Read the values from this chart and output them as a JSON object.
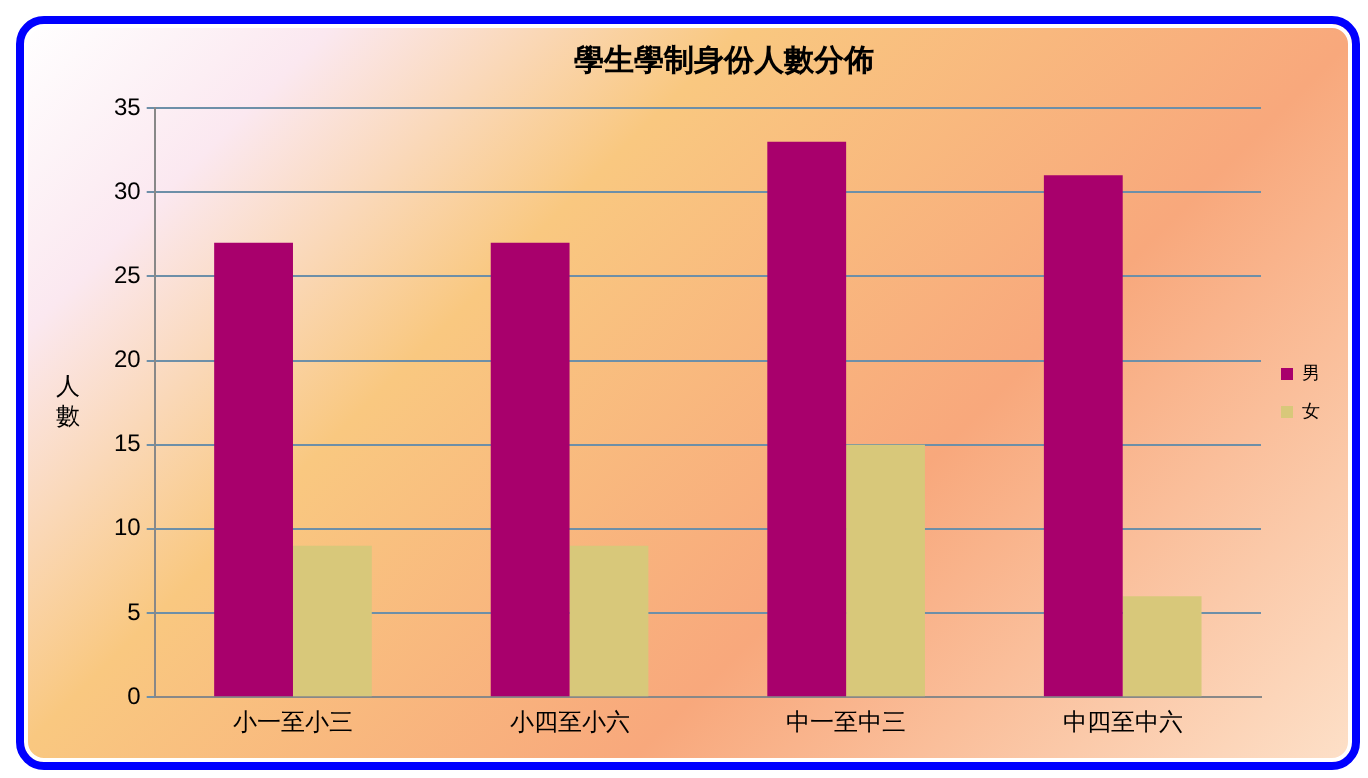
{
  "chart_data": {
    "type": "bar",
    "title": "學生學制身份人數分佈",
    "ylabel": "人數",
    "categories": [
      "小一至小三",
      "小四至小六",
      "中一至中三",
      "中四至中六"
    ],
    "series": [
      {
        "name": "男",
        "color": "#a8006c",
        "values": [
          27,
          27,
          33,
          31
        ]
      },
      {
        "name": "女",
        "color": "#d8c87a",
        "values": [
          9,
          9,
          15,
          6
        ]
      }
    ],
    "ylim": [
      0,
      35
    ],
    "yticks": [
      0,
      5,
      10,
      15,
      20,
      25,
      30,
      35
    ],
    "grid": "y",
    "legend": "right"
  }
}
